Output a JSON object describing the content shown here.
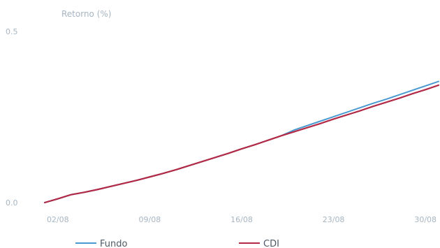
{
  "chart_data": {
    "type": "line",
    "title": "",
    "ylabel": "Retorno (%)",
    "xlabel": "",
    "ylim": [
      0.0,
      0.5
    ],
    "y_ticks": [
      "0.0",
      "0.5"
    ],
    "x_ticks": [
      "02/08",
      "09/08",
      "16/08",
      "23/08",
      "30/08"
    ],
    "x": [
      "01/08",
      "02/08",
      "03/08",
      "04/08",
      "05/08",
      "06/08",
      "07/08",
      "08/08",
      "09/08",
      "10/08",
      "11/08",
      "12/08",
      "13/08",
      "14/08",
      "15/08",
      "16/08",
      "17/08",
      "18/08",
      "19/08",
      "20/08",
      "21/08",
      "22/08",
      "23/08",
      "24/08",
      "25/08",
      "26/08",
      "27/08",
      "28/08",
      "29/08",
      "30/08",
      "31/08"
    ],
    "series": [
      {
        "name": "Fundo",
        "color": "#4a9ad1",
        "values": [
          0.0,
          0.011,
          0.023,
          0.03,
          0.038,
          0.047,
          0.056,
          0.065,
          0.075,
          0.085,
          0.096,
          0.108,
          0.12,
          0.132,
          0.144,
          0.157,
          0.169,
          0.182,
          0.195,
          0.212,
          0.225,
          0.238,
          0.251,
          0.264,
          0.277,
          0.29,
          0.302,
          0.315,
          0.328,
          0.341,
          0.354
        ]
      },
      {
        "name": "CDI",
        "color": "#b22a46",
        "values": [
          0.0,
          0.011,
          0.023,
          0.03,
          0.038,
          0.047,
          0.056,
          0.065,
          0.075,
          0.085,
          0.096,
          0.108,
          0.12,
          0.132,
          0.144,
          0.157,
          0.169,
          0.182,
          0.195,
          0.207,
          0.219,
          0.231,
          0.244,
          0.256,
          0.268,
          0.281,
          0.293,
          0.305,
          0.318,
          0.33,
          0.343
        ]
      }
    ],
    "grid": false,
    "legend": "bottom"
  }
}
